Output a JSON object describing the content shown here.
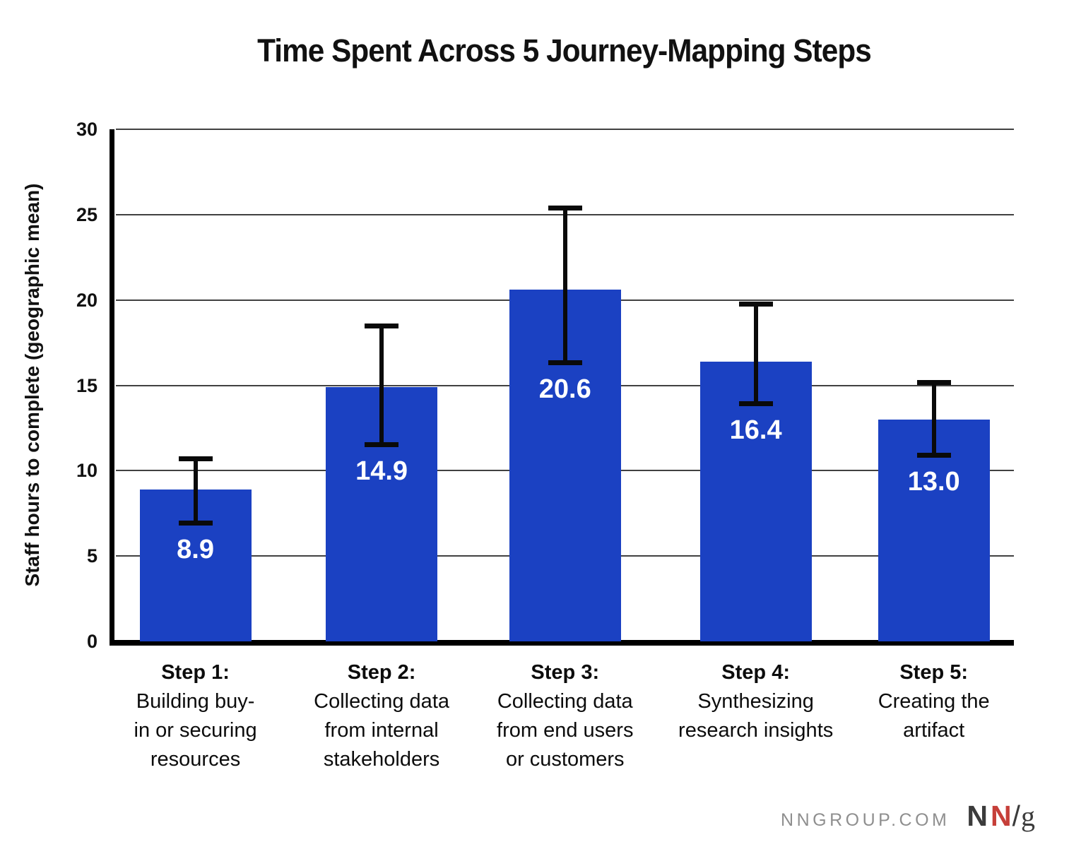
{
  "chart_data": {
    "type": "bar",
    "title": "Time Spent Across 5 Journey-Mapping Steps",
    "ylabel": "Staff hours to complete (geographic mean)",
    "ylim": [
      0,
      30
    ],
    "yticks": [
      0,
      5,
      10,
      15,
      20,
      25,
      30
    ],
    "grid": "horizontal",
    "legend": "none",
    "bar_color": "#1b41c2",
    "categories": [
      {
        "step": "Step 1:",
        "lines": [
          "Building buy-",
          "in or securing",
          "resources"
        ]
      },
      {
        "step": "Step 2:",
        "lines": [
          "Collecting data",
          "from internal",
          "stakeholders"
        ]
      },
      {
        "step": "Step 3:",
        "lines": [
          "Collecting data",
          "from end users",
          "or customers"
        ]
      },
      {
        "step": "Step 4:",
        "lines": [
          "Synthesizing",
          "research insights"
        ]
      },
      {
        "step": "Step 5:",
        "lines": [
          "Creating the",
          "artifact"
        ]
      }
    ],
    "values": [
      8.9,
      14.9,
      20.6,
      16.4,
      13.0
    ],
    "value_labels": [
      "8.9",
      "14.9",
      "20.6",
      "16.4",
      "13.0"
    ],
    "error_low": [
      6.9,
      11.5,
      16.3,
      13.9,
      10.9
    ],
    "error_high": [
      10.7,
      18.5,
      25.4,
      19.8,
      15.2
    ]
  },
  "footer": {
    "site": "NNGROUP.COM",
    "logo": {
      "n1": "N",
      "n2": "N",
      "slash": "/",
      "g": "g",
      "dark_color": "#3b3b3b",
      "red_color": "#c63f39"
    }
  }
}
